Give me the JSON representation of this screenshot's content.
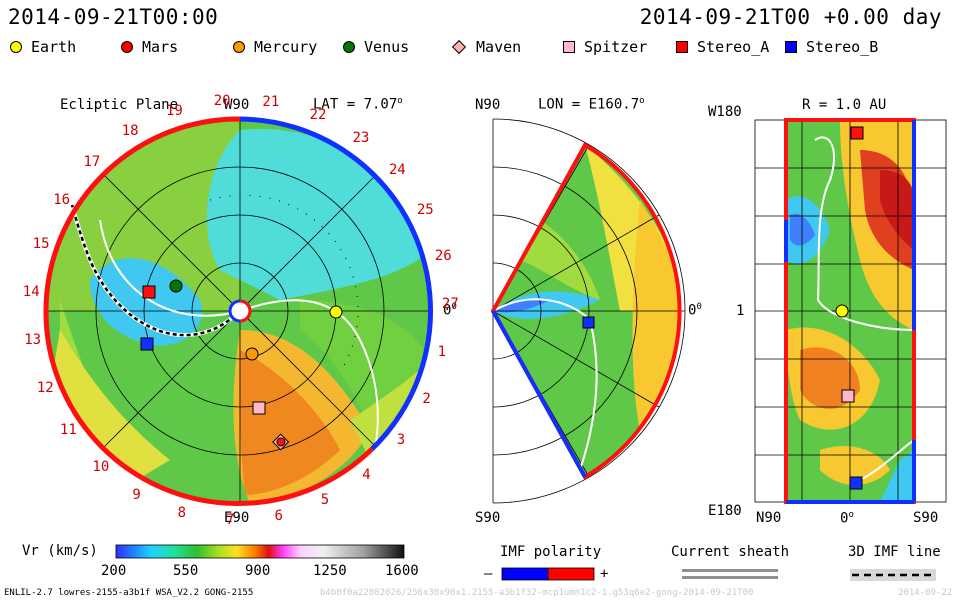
{
  "header": {
    "datetime_left": "2014-09-21T00:00",
    "datetime_right": "2014-09-21T00 +0.00 day"
  },
  "legend": [
    {
      "label": "Earth",
      "shape": "circle",
      "color": "#ffff00"
    },
    {
      "label": "Mars",
      "shape": "circle",
      "color": "#ff0000"
    },
    {
      "label": "Mercury",
      "shape": "circle",
      "color": "#ff9900"
    },
    {
      "label": "Venus",
      "shape": "circle",
      "color": "#007700"
    },
    {
      "label": "Maven",
      "shape": "diamond",
      "color": "#ffb0b0"
    },
    {
      "label": "Spitzer",
      "shape": "square",
      "color": "#ffb8c8"
    },
    {
      "label": "Stereo_A",
      "shape": "square",
      "color": "#ff0000"
    },
    {
      "label": "Stereo_B",
      "shape": "square",
      "color": "#0000ff"
    }
  ],
  "ecliptic": {
    "title": "Ecliptic Plane",
    "top_label": "W90",
    "bottom_label": "E90",
    "right_label": "0",
    "right_sup": "0",
    "lat_label": "LAT = 7.07",
    "lat_sup": "o",
    "carrington": [
      "20",
      "21",
      "22",
      "23",
      "24",
      "25",
      "26",
      "27",
      "1",
      "2",
      "3",
      "4",
      "5",
      "6",
      "7",
      "8",
      "9",
      "10",
      "11",
      "12",
      "13",
      "14",
      "15",
      "16",
      "17",
      "18",
      "19"
    ]
  },
  "meridional": {
    "top_label": "N90",
    "bottom_label": "S90",
    "right_label": "0",
    "right_sup": "0",
    "lon_label": "LON = E160.7",
    "lon_sup": "o"
  },
  "radial": {
    "r_label": "R = 1.0 AU",
    "top_label": "W180",
    "mid_label": "1",
    "bottom_label": "E180",
    "x_left": "N90",
    "x_mid": "0",
    "x_mid_sup": "o",
    "x_right": "S90"
  },
  "colorbar": {
    "label": "Vr (km/s)",
    "ticks": [
      "200",
      "550",
      "900",
      "1250",
      "1600"
    ]
  },
  "imf": {
    "title": "IMF polarity",
    "minus": "–",
    "plus": "+",
    "neg_color": "#0000ff",
    "pos_color": "#ff0000"
  },
  "sheath": {
    "title": "Current sheath"
  },
  "imf3d": {
    "title": "3D IMF line"
  },
  "footer": {
    "model_info": "ENLIL-2.7 lowres-2155-a3b1f WSA_V2.2 GONG-2155",
    "run_info": "b4b0f0a22082026/256x30x90x1.2155-a3b1f32-mcp1umn1c2-1.g53q6e2-gong-2014-09-21T00",
    "date_stamp": "2014-09-22"
  }
}
